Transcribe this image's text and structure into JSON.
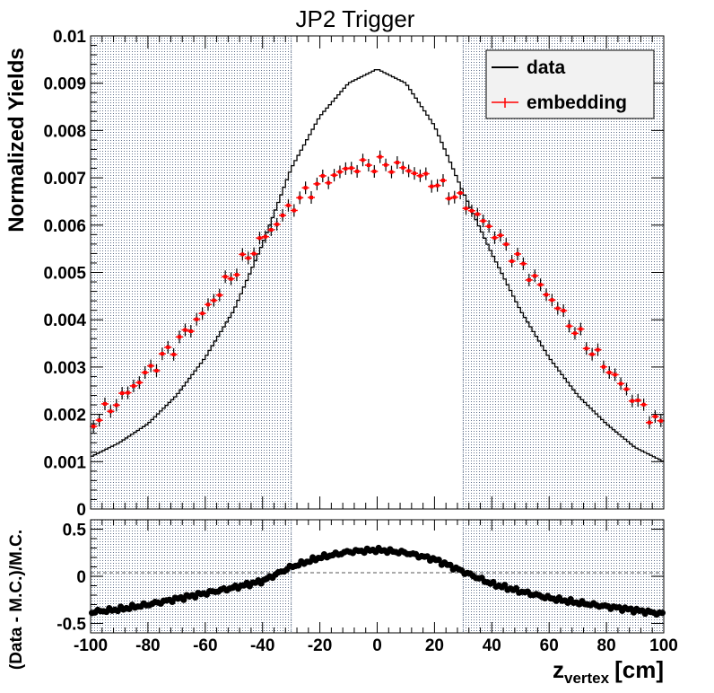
{
  "chart_data": [
    {
      "type": "line",
      "title": "JP2 Trigger",
      "ylabel": "Normalized Yields",
      "xlim": [
        -100,
        100
      ],
      "ylim": [
        0,
        0.01
      ],
      "yticks": [
        "0",
        "0.001",
        "0.002",
        "0.003",
        "0.004",
        "0.005",
        "0.006",
        "0.007",
        "0.008",
        "0.009",
        "0.01"
      ],
      "shaded_regions": [
        [
          -100,
          -30
        ],
        [
          30,
          100
        ]
      ],
      "legend": {
        "placement": "top-right",
        "entries": [
          "data",
          "embedding"
        ]
      },
      "series": [
        {
          "name": "data",
          "style": "step",
          "color": "#000000",
          "x": [
            -100,
            -90,
            -80,
            -70,
            -60,
            -50,
            -40,
            -30,
            -20,
            -10,
            0,
            10,
            20,
            30,
            40,
            50,
            60,
            70,
            80,
            90,
            100
          ],
          "values": [
            0.0011,
            0.0014,
            0.0018,
            0.0024,
            0.0032,
            0.0042,
            0.0056,
            0.0072,
            0.0083,
            0.009,
            0.0093,
            0.009,
            0.0081,
            0.0067,
            0.0054,
            0.0042,
            0.0032,
            0.0024,
            0.0018,
            0.0013,
            0.001
          ]
        },
        {
          "name": "embedding",
          "style": "markers",
          "color": "#ff0000",
          "x": [
            -100,
            -90,
            -80,
            -70,
            -60,
            -50,
            -40,
            -30,
            -20,
            -10,
            0,
            10,
            20,
            30,
            40,
            50,
            60,
            70,
            80,
            90,
            100
          ],
          "values": [
            0.0018,
            0.0023,
            0.0029,
            0.0035,
            0.0042,
            0.005,
            0.0057,
            0.0064,
            0.0069,
            0.0072,
            0.0073,
            0.0072,
            0.0069,
            0.0065,
            0.0059,
            0.0052,
            0.0045,
            0.0037,
            0.003,
            0.0023,
            0.0017
          ]
        }
      ]
    },
    {
      "type": "scatter",
      "xlabel": "z",
      "xlabel_sub": "vertex",
      "xlabel_unit": "[cm]",
      "ylabel": "(Data - M.C.)/M.C.",
      "xlim": [
        -100,
        100
      ],
      "ylim": [
        -0.6,
        0.6
      ],
      "xticks": [
        "-100",
        "-80",
        "-60",
        "-40",
        "-20",
        "0",
        "20",
        "40",
        "60",
        "80",
        "100"
      ],
      "yticks": [
        "-0.5",
        "0",
        "0.5"
      ],
      "reference_line": 0,
      "shaded_regions": [
        [
          -100,
          -30
        ],
        [
          30,
          100
        ]
      ],
      "series": [
        {
          "color": "#000000",
          "x": [
            -100,
            -90,
            -80,
            -70,
            -60,
            -50,
            -40,
            -30,
            -20,
            -10,
            0,
            10,
            20,
            30,
            40,
            50,
            60,
            70,
            80,
            90,
            100
          ],
          "values": [
            -0.38,
            -0.35,
            -0.3,
            -0.24,
            -0.18,
            -0.12,
            -0.05,
            0.1,
            0.2,
            0.26,
            0.28,
            0.25,
            0.18,
            0.05,
            -0.08,
            -0.16,
            -0.23,
            -0.28,
            -0.32,
            -0.36,
            -0.4
          ]
        }
      ]
    }
  ]
}
